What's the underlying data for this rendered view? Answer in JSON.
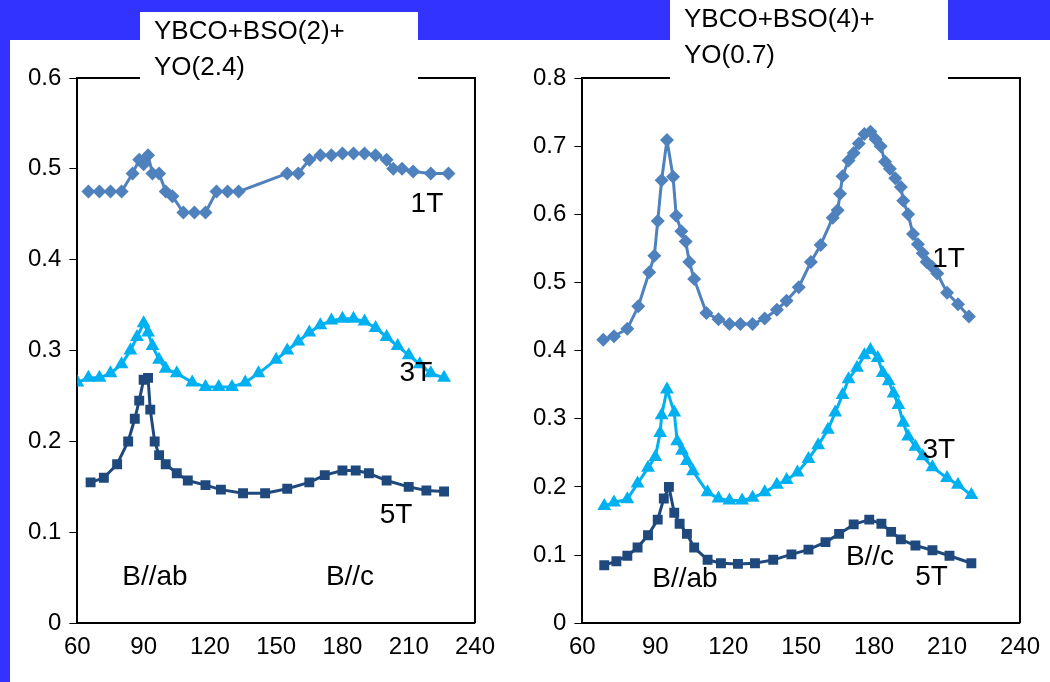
{
  "chart_data": [
    {
      "type": "line",
      "title": "YBCO+BSO(2)+ YO(2.4)",
      "xlim": [
        60,
        240
      ],
      "xticks": [
        60,
        90,
        120,
        150,
        180,
        210,
        240
      ],
      "ylim": [
        0,
        0.6
      ],
      "yticks": [
        0,
        0.1,
        0.2,
        0.3,
        0.4,
        0.5,
        0.6
      ],
      "grid": false,
      "legend": false,
      "line_style": "solid",
      "annotations": [
        "B//ab",
        "B//c"
      ],
      "series": [
        {
          "name": "1T",
          "color": "#4f81bd",
          "marker": "diamond",
          "x": [
            65,
            70,
            75,
            80,
            85,
            88,
            90,
            92,
            94,
            97,
            100,
            103,
            108,
            113,
            118,
            123,
            128,
            133,
            155,
            160,
            165,
            170,
            175,
            180,
            185,
            190,
            195,
            200,
            203,
            207,
            212,
            220,
            228
          ],
          "values": [
            0.475,
            0.475,
            0.475,
            0.475,
            0.495,
            0.51,
            0.505,
            0.515,
            0.495,
            0.495,
            0.475,
            0.47,
            0.452,
            0.452,
            0.452,
            0.475,
            0.475,
            0.475,
            0.495,
            0.495,
            0.51,
            0.515,
            0.515,
            0.517,
            0.517,
            0.517,
            0.515,
            0.51,
            0.5,
            0.5,
            0.497,
            0.495,
            0.495
          ]
        },
        {
          "name": "3T",
          "color": "#00b0f0",
          "marker": "triangle",
          "x": [
            60,
            65,
            70,
            75,
            80,
            84,
            87,
            90,
            92,
            94,
            97,
            100,
            105,
            112,
            118,
            124,
            130,
            136,
            142,
            150,
            155,
            160,
            165,
            170,
            175,
            180,
            185,
            190,
            195,
            200,
            205,
            210,
            215,
            220,
            226
          ],
          "values": [
            0.265,
            0.27,
            0.27,
            0.275,
            0.285,
            0.3,
            0.315,
            0.33,
            0.32,
            0.305,
            0.29,
            0.28,
            0.275,
            0.265,
            0.26,
            0.26,
            0.26,
            0.265,
            0.275,
            0.29,
            0.3,
            0.31,
            0.32,
            0.328,
            0.333,
            0.335,
            0.335,
            0.332,
            0.325,
            0.315,
            0.305,
            0.295,
            0.285,
            0.275,
            0.27
          ]
        },
        {
          "name": "5T",
          "color": "#1f497d",
          "marker": "square",
          "x": [
            66,
            72,
            78,
            83,
            86,
            88,
            90,
            92,
            93,
            95,
            97,
            100,
            105,
            110,
            118,
            125,
            135,
            145,
            155,
            165,
            172,
            180,
            186,
            192,
            200,
            210,
            218,
            226
          ],
          "values": [
            0.155,
            0.16,
            0.175,
            0.2,
            0.225,
            0.245,
            0.268,
            0.27,
            0.235,
            0.2,
            0.185,
            0.175,
            0.165,
            0.157,
            0.152,
            0.147,
            0.143,
            0.143,
            0.148,
            0.155,
            0.163,
            0.168,
            0.168,
            0.165,
            0.157,
            0.15,
            0.146,
            0.145
          ]
        }
      ]
    },
    {
      "type": "line",
      "title": "YBCO+BSO(4)+ YO(0.7)",
      "xlim": [
        60,
        240
      ],
      "xticks": [
        60,
        90,
        120,
        150,
        180,
        210,
        240
      ],
      "ylim": [
        0,
        0.8
      ],
      "yticks": [
        0,
        0.1,
        0.2,
        0.3,
        0.4,
        0.5,
        0.6,
        0.7,
        0.8
      ],
      "grid": false,
      "legend": false,
      "line_style": "solid",
      "annotations": [
        "B//ab",
        "B//c"
      ],
      "series": [
        {
          "name": "1T",
          "color": "#4f81bd",
          "marker": "diamond",
          "x": [
            68.6,
            73,
            78.5,
            83,
            87.5,
            89.6,
            91,
            92.6,
            94.8,
            97.3,
            98.6,
            100.7,
            102.5,
            104,
            106,
            111,
            116,
            120.5,
            125,
            130,
            135,
            140,
            144,
            149,
            154,
            158,
            163,
            165,
            166,
            167,
            169.5,
            171.6,
            173.7,
            176,
            178.5,
            180.6,
            182.7,
            184.5,
            186.5,
            188.7,
            191,
            192,
            194,
            196,
            198,
            200,
            201.6,
            203.8,
            206,
            210,
            214.5,
            219
          ],
          "values": [
            0.416,
            0.421,
            0.432,
            0.465,
            0.515,
            0.539,
            0.59,
            0.65,
            0.709,
            0.655,
            0.598,
            0.575,
            0.56,
            0.53,
            0.505,
            0.455,
            0.446,
            0.439,
            0.439,
            0.439,
            0.447,
            0.46,
            0.473,
            0.493,
            0.53,
            0.555,
            0.595,
            0.606,
            0.63,
            0.656,
            0.679,
            0.69,
            0.704,
            0.718,
            0.721,
            0.71,
            0.7,
            0.677,
            0.667,
            0.653,
            0.64,
            0.62,
            0.6,
            0.571,
            0.556,
            0.543,
            0.53,
            0.523,
            0.513,
            0.485,
            0.468,
            0.45
          ]
        },
        {
          "name": "3T",
          "color": "#00b0f0",
          "marker": "triangle",
          "x": [
            69,
            73,
            78.5,
            82.7,
            87,
            90,
            92,
            92.6,
            94.8,
            97.8,
            99,
            101,
            103,
            105.5,
            111.5,
            116,
            120.5,
            125.7,
            130,
            135,
            140,
            144,
            148.5,
            153,
            157,
            161,
            164,
            167,
            169.5,
            173,
            176,
            178.5,
            181.5,
            183.6,
            186,
            188,
            190,
            192,
            194,
            197,
            200,
            204,
            210,
            214.5,
            220
          ],
          "values": [
            0.172,
            0.177,
            0.182,
            0.205,
            0.228,
            0.244,
            0.279,
            0.305,
            0.343,
            0.309,
            0.267,
            0.253,
            0.238,
            0.223,
            0.192,
            0.183,
            0.18,
            0.18,
            0.184,
            0.192,
            0.203,
            0.21,
            0.221,
            0.241,
            0.261,
            0.284,
            0.309,
            0.335,
            0.358,
            0.375,
            0.393,
            0.401,
            0.389,
            0.367,
            0.355,
            0.337,
            0.32,
            0.294,
            0.274,
            0.259,
            0.245,
            0.229,
            0.213,
            0.203,
            0.188
          ]
        },
        {
          "name": "5T",
          "color": "#1f497d",
          "marker": "square",
          "x": [
            69,
            74,
            78.5,
            82.7,
            87,
            91,
            93.5,
            95.6,
            97.8,
            100,
            103,
            106,
            111.5,
            117,
            124,
            131,
            138.5,
            146,
            153,
            160,
            165.6,
            171.6,
            178,
            183,
            187,
            191,
            197,
            204,
            211,
            220
          ],
          "values": [
            0.085,
            0.091,
            0.099,
            0.111,
            0.129,
            0.152,
            0.183,
            0.2,
            0.162,
            0.146,
            0.131,
            0.111,
            0.093,
            0.088,
            0.087,
            0.088,
            0.093,
            0.101,
            0.108,
            0.119,
            0.131,
            0.145,
            0.152,
            0.146,
            0.134,
            0.123,
            0.114,
            0.107,
            0.099,
            0.088
          ]
        }
      ]
    }
  ]
}
